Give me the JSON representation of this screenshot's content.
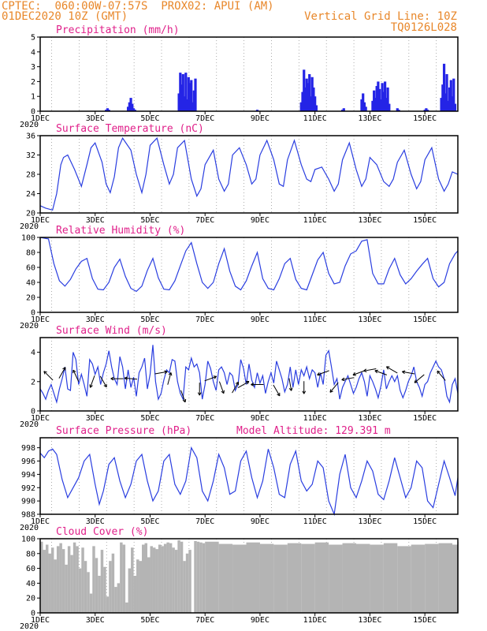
{
  "header": {
    "source": "CPTEC:",
    "coords": "060:00W-07:57S",
    "location": "PROX02: APUI (AM)",
    "datetime": "01DEC2020 10Z (GMT)",
    "vgrid_label": "Vertical Grid Line: 10Z",
    "grid_id": "TQ0126L028"
  },
  "x_tick_labels": [
    "1DEC",
    "3DEC",
    "5DEC",
    "7DEC",
    "9DEC",
    "11DEC",
    "13DEC",
    "15DEC"
  ],
  "year_label": "2020",
  "colors": {
    "line": "#2a3ee0",
    "bar": "#2424e6",
    "cloud": "#b4b4b4",
    "title": "#e0208a",
    "header": "#e8872a"
  },
  "chart_data": [
    {
      "type": "bar",
      "title": "Precipitation (mm/h)",
      "ylim": [
        0,
        5
      ],
      "yticks": [
        0,
        1,
        2,
        3,
        4,
        5
      ],
      "xlim_days": [
        1,
        16.2
      ],
      "x": [
        3.4,
        3.45,
        3.5,
        4.2,
        4.25,
        4.3,
        4.35,
        4.4,
        4.45,
        6.05,
        6.1,
        6.15,
        6.2,
        6.25,
        6.3,
        6.35,
        6.4,
        6.45,
        6.5,
        6.55,
        6.6,
        6.65,
        8.9,
        10.5,
        10.55,
        10.6,
        10.65,
        10.7,
        10.75,
        10.8,
        10.85,
        10.9,
        10.95,
        11.0,
        11.05,
        12.0,
        12.05,
        12.7,
        12.75,
        12.8,
        12.85,
        13.1,
        13.15,
        13.2,
        13.25,
        13.3,
        13.35,
        13.4,
        13.45,
        13.5,
        13.55,
        13.6,
        13.65,
        13.7,
        14.0,
        14.05,
        15.0,
        15.05,
        15.1,
        15.6,
        15.65,
        15.7,
        15.75,
        15.8,
        15.85,
        15.9,
        15.95,
        16.0,
        16.05,
        16.1
      ],
      "values": [
        0.1,
        0.2,
        0.1,
        0.3,
        0.6,
        0.9,
        0.5,
        0.2,
        0.1,
        1.2,
        2.6,
        1.8,
        2.5,
        1.0,
        2.6,
        0.8,
        2.3,
        1.9,
        2.1,
        0.6,
        1.4,
        2.2,
        0.1,
        0.6,
        1.3,
        2.8,
        1.6,
        2.2,
        1.9,
        2.5,
        1.0,
        2.3,
        1.6,
        1.0,
        0.4,
        0.1,
        0.2,
        0.8,
        1.2,
        0.6,
        0.3,
        0.7,
        1.4,
        0.9,
        1.7,
        2.0,
        1.5,
        0.8,
        1.9,
        1.3,
        2.0,
        0.9,
        1.6,
        0.5,
        0.2,
        0.1,
        0.1,
        0.2,
        0.1,
        0.9,
        1.8,
        3.2,
        1.2,
        2.5,
        0.7,
        1.6,
        2.1,
        1.0,
        2.2,
        0.5
      ]
    },
    {
      "type": "line",
      "title": "Surface Temperature (nC)",
      "ylim": [
        20,
        36
      ],
      "yticks": [
        20,
        24,
        28,
        32,
        36
      ],
      "xlim_days": [
        1,
        16.2
      ],
      "x": [
        1.0,
        1.2,
        1.45,
        1.6,
        1.75,
        1.85,
        2.0,
        2.25,
        2.5,
        2.7,
        2.85,
        3.0,
        3.25,
        3.4,
        3.55,
        3.7,
        3.85,
        4.0,
        4.3,
        4.5,
        4.7,
        4.85,
        5.0,
        5.25,
        5.5,
        5.7,
        5.85,
        6.0,
        6.25,
        6.5,
        6.7,
        6.85,
        7.0,
        7.3,
        7.5,
        7.7,
        7.85,
        8.0,
        8.25,
        8.5,
        8.7,
        8.85,
        9.0,
        9.25,
        9.5,
        9.7,
        9.85,
        10.0,
        10.25,
        10.5,
        10.7,
        10.85,
        11.0,
        11.25,
        11.5,
        11.7,
        11.85,
        12.0,
        12.25,
        12.5,
        12.7,
        12.85,
        13.0,
        13.25,
        13.5,
        13.7,
        13.85,
        14.0,
        14.25,
        14.5,
        14.7,
        14.85,
        15.0,
        15.25,
        15.5,
        15.7,
        15.85,
        16.0,
        16.2
      ],
      "values": [
        21.5,
        21.0,
        20.6,
        24.0,
        30.0,
        31.5,
        32.0,
        29.0,
        25.5,
        30.0,
        33.5,
        34.5,
        30.5,
        26.0,
        24.2,
        27.5,
        33.5,
        35.5,
        33.0,
        28.0,
        24.2,
        28.0,
        34.0,
        35.5,
        30.0,
        26.0,
        28.0,
        33.5,
        35.0,
        27.0,
        23.5,
        25.0,
        30.0,
        33.0,
        27.0,
        24.5,
        26.0,
        32.0,
        33.5,
        30.0,
        26.0,
        27.0,
        32.0,
        35.0,
        31.0,
        26.0,
        25.5,
        31.0,
        35.0,
        30.0,
        27.0,
        26.5,
        29.0,
        29.5,
        27.0,
        24.5,
        26.0,
        31.0,
        34.5,
        29.0,
        25.5,
        27.0,
        31.5,
        30.0,
        26.5,
        25.5,
        27.0,
        30.5,
        33.0,
        28.0,
        25.0,
        26.5,
        31.0,
        33.5,
        27.0,
        24.5,
        26.0,
        28.5,
        28.0
      ]
    },
    {
      "type": "line",
      "title": "Relative Humidity (%)",
      "ylim": [
        0,
        100
      ],
      "yticks": [
        0,
        20,
        40,
        60,
        80,
        100
      ],
      "xlim_days": [
        1,
        16.2
      ],
      "x": [
        1.0,
        1.3,
        1.5,
        1.7,
        1.9,
        2.1,
        2.3,
        2.5,
        2.7,
        2.9,
        3.1,
        3.3,
        3.5,
        3.7,
        3.9,
        4.1,
        4.3,
        4.5,
        4.7,
        4.9,
        5.1,
        5.3,
        5.5,
        5.7,
        5.9,
        6.1,
        6.3,
        6.5,
        6.7,
        6.9,
        7.1,
        7.3,
        7.5,
        7.7,
        7.9,
        8.1,
        8.3,
        8.5,
        8.7,
        8.9,
        9.1,
        9.3,
        9.5,
        9.7,
        9.9,
        10.1,
        10.3,
        10.5,
        10.7,
        10.9,
        11.1,
        11.3,
        11.5,
        11.7,
        11.9,
        12.1,
        12.3,
        12.5,
        12.7,
        12.9,
        13.1,
        13.3,
        13.5,
        13.7,
        13.9,
        14.1,
        14.3,
        14.5,
        14.7,
        14.9,
        15.1,
        15.3,
        15.5,
        15.7,
        15.9,
        16.1,
        16.2
      ],
      "values": [
        100,
        98,
        65,
        42,
        35,
        44,
        58,
        68,
        72,
        45,
        31,
        30,
        40,
        60,
        71,
        48,
        32,
        28,
        35,
        56,
        72,
        46,
        31,
        30,
        42,
        62,
        82,
        93,
        65,
        40,
        32,
        40,
        65,
        85,
        55,
        35,
        30,
        42,
        62,
        80,
        45,
        32,
        30,
        45,
        65,
        72,
        44,
        32,
        30,
        50,
        70,
        80,
        52,
        38,
        40,
        62,
        78,
        82,
        95,
        97,
        52,
        38,
        38,
        58,
        72,
        50,
        38,
        45,
        55,
        64,
        72,
        45,
        34,
        40,
        65,
        78,
        82
      ]
    },
    {
      "type": "line",
      "title": "Surface Wind (m/s)",
      "ylim": [
        0,
        5
      ],
      "yticks": [
        0,
        2,
        4
      ],
      "xlim_days": [
        1,
        16.2
      ],
      "x": [
        1.0,
        1.1,
        1.2,
        1.3,
        1.4,
        1.5,
        1.6,
        1.7,
        1.8,
        1.9,
        2.0,
        2.1,
        2.2,
        2.3,
        2.4,
        2.5,
        2.6,
        2.7,
        2.8,
        2.9,
        3.0,
        3.1,
        3.2,
        3.3,
        3.4,
        3.5,
        3.6,
        3.7,
        3.8,
        3.9,
        4.0,
        4.1,
        4.2,
        4.3,
        4.4,
        4.5,
        4.6,
        4.7,
        4.8,
        4.9,
        5.0,
        5.1,
        5.2,
        5.3,
        5.4,
        5.5,
        5.6,
        5.7,
        5.8,
        5.9,
        6.0,
        6.1,
        6.2,
        6.3,
        6.4,
        6.5,
        6.6,
        6.7,
        6.8,
        6.9,
        7.0,
        7.1,
        7.2,
        7.3,
        7.4,
        7.5,
        7.6,
        7.7,
        7.8,
        7.9,
        8.0,
        8.1,
        8.2,
        8.3,
        8.4,
        8.5,
        8.6,
        8.7,
        8.8,
        8.9,
        9.0,
        9.1,
        9.2,
        9.3,
        9.4,
        9.5,
        9.6,
        9.7,
        9.8,
        9.9,
        10.0,
        10.1,
        10.2,
        10.3,
        10.4,
        10.5,
        10.6,
        10.7,
        10.8,
        10.9,
        11.0,
        11.1,
        11.2,
        11.3,
        11.4,
        11.5,
        11.6,
        11.7,
        11.8,
        11.9,
        12.0,
        12.1,
        12.2,
        12.3,
        12.4,
        12.5,
        12.6,
        12.7,
        12.8,
        12.9,
        13.0,
        13.1,
        13.2,
        13.3,
        13.4,
        13.5,
        13.6,
        13.7,
        13.8,
        13.9,
        14.0,
        14.1,
        14.2,
        14.3,
        14.4,
        14.5,
        14.6,
        14.7,
        14.8,
        14.9,
        15.0,
        15.1,
        15.2,
        15.3,
        15.4,
        15.5,
        15.6,
        15.7,
        15.8,
        15.9,
        16.0,
        16.1,
        16.2
      ],
      "values": [
        1.5,
        1.2,
        0.8,
        1.4,
        1.8,
        1.2,
        0.6,
        1.5,
        2.2,
        3.0,
        1.5,
        1.4,
        4.0,
        3.5,
        1.8,
        2.5,
        1.8,
        1.0,
        3.5,
        3.2,
        2.5,
        3.0,
        1.8,
        2.6,
        3.2,
        4.1,
        3.0,
        2.2,
        1.8,
        3.7,
        3.0,
        1.5,
        2.8,
        1.6,
        2.3,
        1.0,
        2.6,
        3.0,
        3.6,
        1.5,
        2.5,
        4.5,
        2.0,
        0.8,
        1.2,
        2.1,
        2.8,
        2.6,
        3.5,
        3.4,
        2.0,
        1.2,
        0.8,
        3.0,
        2.8,
        3.6,
        3.0,
        3.2,
        2.6,
        0.8,
        1.8,
        3.4,
        2.9,
        2.0,
        1.4,
        2.8,
        3.0,
        2.6,
        1.8,
        2.6,
        2.4,
        1.4,
        1.8,
        3.5,
        2.9,
        1.8,
        3.2,
        2.1,
        1.6,
        2.6,
        1.9,
        2.4,
        1.2,
        2.0,
        2.6,
        1.9,
        3.4,
        2.8,
        2.2,
        1.3,
        1.8,
        3.0,
        1.6,
        2.8,
        1.8,
        2.8,
        2.4,
        3.0,
        2.2,
        2.8,
        2.6,
        1.6,
        2.6,
        1.8,
        3.8,
        4.1,
        3.0,
        1.8,
        2.2,
        0.8,
        1.6,
        2.0,
        2.4,
        1.8,
        1.2,
        1.6,
        2.2,
        2.6,
        2.0,
        1.0,
        2.4,
        2.0,
        1.5,
        0.9,
        1.7,
        2.8,
        1.5,
        2.0,
        2.4,
        2.0,
        2.4,
        1.4,
        0.9,
        1.4,
        2.0,
        2.4,
        3.0,
        2.0,
        1.6,
        1.0,
        1.8,
        2.0,
        2.6,
        3.0,
        3.4,
        3.0,
        2.8,
        2.2,
        1.0,
        0.6,
        1.8,
        2.2,
        1.2
      ],
      "arrows": [
        {
          "x": 1.3,
          "y": 2.4,
          "dir_deg": 135
        },
        {
          "x": 1.8,
          "y": 2.6,
          "dir_deg": 60
        },
        {
          "x": 2.3,
          "y": 2.4,
          "dir_deg": 115
        },
        {
          "x": 2.9,
          "y": 2.0,
          "dir_deg": 250
        },
        {
          "x": 3.3,
          "y": 2.0,
          "dir_deg": 300
        },
        {
          "x": 3.8,
          "y": 2.2,
          "dir_deg": 180
        },
        {
          "x": 4.3,
          "y": 2.2,
          "dir_deg": 175
        },
        {
          "x": 5.4,
          "y": 2.6,
          "dir_deg": 10
        },
        {
          "x": 5.7,
          "y": 2.2,
          "dir_deg": 75
        },
        {
          "x": 6.2,
          "y": 1.0,
          "dir_deg": 290
        },
        {
          "x": 6.8,
          "y": 1.5,
          "dir_deg": 270
        },
        {
          "x": 7.2,
          "y": 2.2,
          "dir_deg": 20
        },
        {
          "x": 7.6,
          "y": 1.6,
          "dir_deg": 290
        },
        {
          "x": 8.1,
          "y": 1.6,
          "dir_deg": 60
        },
        {
          "x": 8.4,
          "y": 1.8,
          "dir_deg": 30
        },
        {
          "x": 8.9,
          "y": 1.8,
          "dir_deg": 180
        },
        {
          "x": 9.6,
          "y": 1.4,
          "dir_deg": 300
        },
        {
          "x": 10.1,
          "y": 1.8,
          "dir_deg": 280
        },
        {
          "x": 10.6,
          "y": 1.6,
          "dir_deg": 270
        },
        {
          "x": 11.3,
          "y": 2.6,
          "dir_deg": 200
        },
        {
          "x": 11.7,
          "y": 1.6,
          "dir_deg": 230
        },
        {
          "x": 12.2,
          "y": 2.2,
          "dir_deg": 190
        },
        {
          "x": 12.6,
          "y": 2.6,
          "dir_deg": 200
        },
        {
          "x": 13.0,
          "y": 2.8,
          "dir_deg": 190
        },
        {
          "x": 13.4,
          "y": 2.6,
          "dir_deg": 160
        },
        {
          "x": 13.8,
          "y": 2.8,
          "dir_deg": 150
        },
        {
          "x": 14.4,
          "y": 2.6,
          "dir_deg": 170
        },
        {
          "x": 14.8,
          "y": 2.2,
          "dir_deg": 220
        },
        {
          "x": 15.6,
          "y": 2.4,
          "dir_deg": 130
        }
      ]
    },
    {
      "type": "line",
      "title": "Surface Pressure (hPa)",
      "subtitle": "Model Altitude: 129.391 m",
      "ylim": [
        988,
        999.5
      ],
      "yticks": [
        988,
        990,
        992,
        994,
        996,
        998
      ],
      "xlim_days": [
        1,
        16.2
      ],
      "x": [
        1.0,
        1.15,
        1.3,
        1.45,
        1.6,
        1.8,
        2.0,
        2.2,
        2.4,
        2.6,
        2.8,
        3.0,
        3.15,
        3.3,
        3.5,
        3.7,
        3.9,
        4.1,
        4.3,
        4.5,
        4.7,
        4.9,
        5.1,
        5.3,
        5.5,
        5.7,
        5.9,
        6.1,
        6.3,
        6.5,
        6.7,
        6.9,
        7.1,
        7.3,
        7.5,
        7.7,
        7.9,
        8.1,
        8.3,
        8.5,
        8.7,
        8.9,
        9.1,
        9.3,
        9.5,
        9.7,
        9.9,
        10.1,
        10.3,
        10.5,
        10.7,
        10.9,
        11.1,
        11.3,
        11.5,
        11.7,
        11.9,
        12.1,
        12.3,
        12.5,
        12.7,
        12.9,
        13.1,
        13.3,
        13.5,
        13.7,
        13.9,
        14.1,
        14.3,
        14.5,
        14.7,
        14.9,
        15.1,
        15.3,
        15.5,
        15.7,
        15.9,
        16.1,
        16.2
      ],
      "values": [
        997.2,
        996.5,
        997.5,
        997.8,
        997.0,
        993.2,
        990.5,
        992.0,
        993.5,
        996.0,
        997.0,
        992.5,
        989.5,
        991.5,
        995.5,
        996.5,
        993.0,
        990.5,
        992.5,
        996.0,
        997.0,
        993.0,
        990.0,
        991.5,
        996.0,
        997.0,
        992.5,
        991.0,
        993.0,
        998.0,
        996.5,
        991.5,
        990.0,
        993.0,
        997.0,
        995.0,
        991.0,
        991.5,
        996.0,
        997.5,
        993.5,
        990.5,
        993.0,
        997.8,
        995.0,
        991.0,
        990.5,
        995.5,
        997.5,
        993.0,
        991.5,
        992.5,
        996.0,
        995.0,
        990.0,
        988.0,
        994.0,
        997.0,
        992.0,
        990.5,
        993.0,
        996.0,
        994.5,
        991.0,
        990.2,
        993.0,
        996.5,
        993.5,
        990.5,
        992.0,
        996.0,
        995.0,
        990.0,
        989.0,
        992.5,
        996.0,
        993.5,
        990.8,
        993.5
      ]
    },
    {
      "type": "area",
      "title": "Cloud Cover (%)",
      "ylim": [
        0,
        100
      ],
      "yticks": [
        0,
        20,
        40,
        60,
        80,
        100
      ],
      "xlim_days": [
        1,
        16.2
      ],
      "x": [
        1.0,
        1.1,
        1.2,
        1.3,
        1.4,
        1.5,
        1.6,
        1.7,
        1.8,
        1.9,
        2.0,
        2.1,
        2.2,
        2.3,
        2.4,
        2.5,
        2.6,
        2.7,
        2.8,
        2.9,
        3.0,
        3.1,
        3.2,
        3.3,
        3.4,
        3.5,
        3.6,
        3.7,
        3.8,
        3.9,
        4.0,
        4.1,
        4.2,
        4.3,
        4.4,
        4.5,
        4.6,
        4.7,
        4.8,
        4.9,
        5.0,
        5.1,
        5.2,
        5.3,
        5.4,
        5.5,
        5.6,
        5.7,
        5.8,
        5.9,
        6.0,
        6.1,
        6.2,
        6.3,
        6.4,
        6.5,
        6.6,
        6.7,
        6.8,
        6.9,
        7.0,
        7.5,
        8.0,
        8.5,
        9.0,
        9.5,
        10.0,
        10.5,
        11.0,
        11.5,
        12.0,
        12.5,
        13.0,
        13.5,
        14.0,
        14.5,
        15.0,
        15.5,
        16.0,
        16.2
      ],
      "values": [
        96,
        85,
        92,
        80,
        88,
        72,
        90,
        94,
        86,
        65,
        90,
        78,
        95,
        90,
        60,
        88,
        70,
        55,
        26,
        90,
        74,
        50,
        85,
        62,
        22,
        70,
        80,
        35,
        40,
        95,
        92,
        14,
        60,
        88,
        50,
        72,
        70,
        92,
        94,
        75,
        90,
        88,
        86,
        92,
        90,
        93,
        95,
        94,
        88,
        85,
        98,
        96,
        70,
        80,
        85,
        0,
        97,
        96,
        95,
        94,
        96,
        93,
        92,
        95,
        93,
        92,
        94,
        93,
        95,
        92,
        94,
        93,
        92,
        94,
        90,
        92,
        93,
        94,
        92,
        96
      ]
    }
  ]
}
